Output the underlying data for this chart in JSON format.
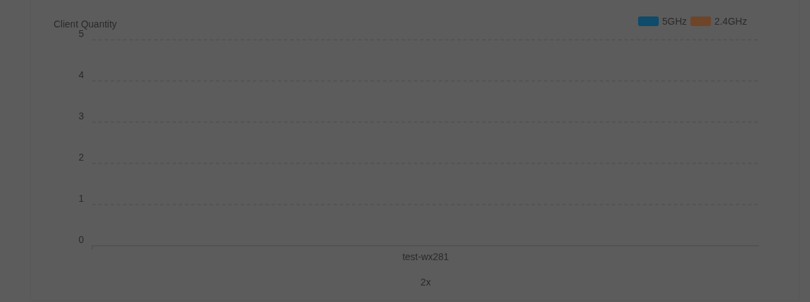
{
  "chart_data": {
    "type": "bar",
    "ylabel": "Client Quantity",
    "xlabel": "2x",
    "categories": [
      "test-wx281"
    ],
    "series": [
      {
        "name": "5GHz",
        "color": "#0f4b6b",
        "values": [
          0
        ]
      },
      {
        "name": "2.4GHz",
        "color": "#6e4529",
        "values": [
          0
        ]
      }
    ],
    "ylim": [
      0,
      5
    ],
    "yticks": [
      0,
      1,
      2,
      3,
      4,
      5
    ],
    "grid": "y",
    "legend": "top right"
  }
}
